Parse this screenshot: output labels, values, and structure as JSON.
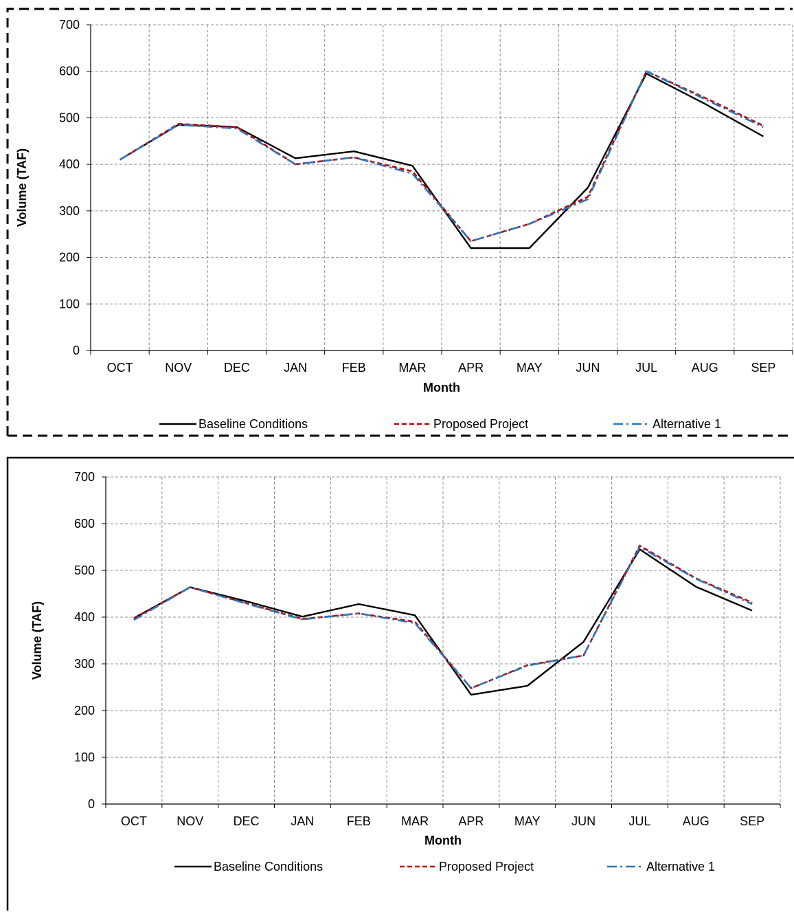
{
  "chart_data": [
    {
      "type": "line",
      "title": "",
      "xlabel": "Month",
      "ylabel": "Volume (TAF)",
      "ylim": [
        0,
        700
      ],
      "yticks": [
        0,
        100,
        200,
        300,
        400,
        500,
        600,
        700
      ],
      "categories": [
        "OCT",
        "NOV",
        "DEC",
        "JAN",
        "FEB",
        "MAR",
        "APR",
        "MAY",
        "JUN",
        "JUL",
        "AUG",
        "SEP"
      ],
      "grid": true,
      "legend_position": "bottom",
      "frame": "dashed",
      "series": [
        {
          "name": "Baseline Conditions",
          "color": "#000000",
          "style": "solid",
          "values": [
            410,
            485,
            480,
            413,
            428,
            397,
            220,
            220,
            350,
            595,
            530,
            460
          ]
        },
        {
          "name": "Proposed Project",
          "color": "#c00000",
          "style": "dashed",
          "values": [
            410,
            487,
            480,
            400,
            415,
            385,
            235,
            272,
            330,
            600,
            543,
            483
          ]
        },
        {
          "name": "Alternative 1",
          "color": "#2e75b6",
          "style": "dashdot",
          "values": [
            410,
            485,
            477,
            400,
            415,
            380,
            235,
            272,
            325,
            600,
            540,
            480
          ]
        }
      ]
    },
    {
      "type": "line",
      "title": "",
      "xlabel": "Month",
      "ylabel": "Volume (TAF)",
      "ylim": [
        0,
        700
      ],
      "yticks": [
        0,
        100,
        200,
        300,
        400,
        500,
        600,
        700
      ],
      "categories": [
        "OCT",
        "NOV",
        "DEC",
        "JAN",
        "FEB",
        "MAR",
        "APR",
        "MAY",
        "JUN",
        "JUL",
        "AUG",
        "SEP"
      ],
      "grid": true,
      "legend_position": "bottom",
      "frame": "solid",
      "series": [
        {
          "name": "Baseline Conditions",
          "color": "#000000",
          "style": "solid",
          "values": [
            398,
            464,
            434,
            401,
            428,
            404,
            234,
            253,
            347,
            545,
            465,
            414
          ]
        },
        {
          "name": "Proposed Project",
          "color": "#c00000",
          "style": "dashed",
          "values": [
            397,
            464,
            430,
            396,
            408,
            390,
            248,
            297,
            318,
            553,
            483,
            431
          ]
        },
        {
          "name": "Alternative 1",
          "color": "#2e75b6",
          "style": "dashdot",
          "values": [
            394,
            464,
            429,
            395,
            408,
            387,
            248,
            296,
            318,
            550,
            482,
            428
          ]
        }
      ]
    }
  ]
}
